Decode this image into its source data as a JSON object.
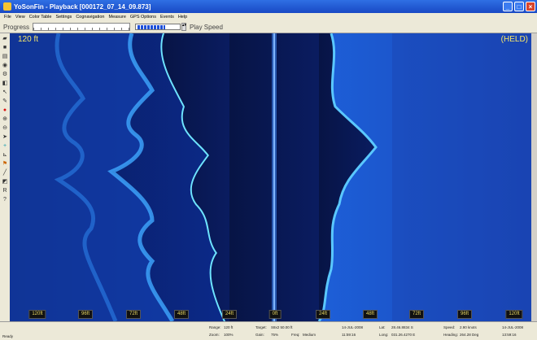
{
  "window": {
    "title": "YoSonFin - Playback [000172_07_14_09.873]"
  },
  "menu": [
    "File",
    "View",
    "Color Table",
    "Settings",
    "Cognavigation",
    "Measure",
    "GPS Options",
    "Events",
    "Help"
  ],
  "toolbar": {
    "progress_label": "Progress",
    "play_speed_label": "Play Speed"
  },
  "sonar": {
    "range_label": "120 ft",
    "held_label": "(HELD)",
    "scale": [
      "120ft",
      "96ft",
      "72ft",
      "48ft",
      "24ft",
      "0ft",
      "24ft",
      "48ft",
      "72ft",
      "96ft",
      "120ft"
    ]
  },
  "status": {
    "ready": "Ready",
    "range_label": "Range:",
    "range_value": "120 ft",
    "zoom_label": "Zoom:",
    "zoom_value": "100%",
    "target_label": "Target:",
    "target_value": "S8x2 50.00 ft",
    "gain_label": "Gain:",
    "gain_value": "75%",
    "freq_label": "Freq:",
    "freq_value": "Medium",
    "date": "14-JUL-2008",
    "time": "11:59:16",
    "lat_label": "Lat:",
    "lat_value": "28.46.8834 S",
    "long_label": "Long:",
    "long_value": "031.26.4270 E",
    "speed_label": "Speed:",
    "speed_value": "2.90 knots",
    "heading_label": "Heading:",
    "heading_value": "264.28 Deg",
    "date2": "14-JUL-2008",
    "time2": "13:59:16"
  }
}
